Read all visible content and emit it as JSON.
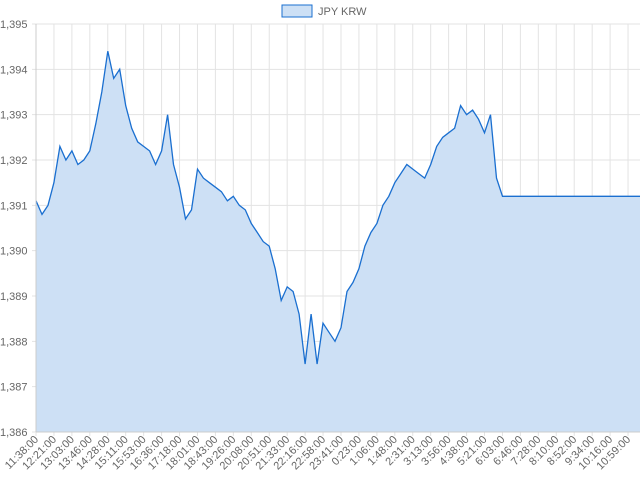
{
  "chart_data": {
    "type": "line",
    "categories": [
      "11:38:00",
      null,
      null,
      "12:21:00",
      null,
      null,
      "13:03:00",
      null,
      null,
      "13:46:00",
      null,
      null,
      "14:28:00",
      null,
      null,
      "15:11:00",
      null,
      null,
      "15:53:00",
      null,
      null,
      "16:36:00",
      null,
      null,
      "17:18:00",
      null,
      null,
      "18:01:00",
      null,
      null,
      "18:43:00",
      null,
      null,
      "19:26:00",
      null,
      null,
      "20:08:00",
      null,
      null,
      "20:51:00",
      null,
      null,
      "21:33:00",
      null,
      null,
      "22:16:00",
      null,
      null,
      "22:58:00",
      null,
      null,
      "23:41:00",
      null,
      null,
      "0:23:00",
      null,
      null,
      "1:06:00",
      null,
      null,
      "1:48:00",
      null,
      null,
      "2:31:00",
      null,
      null,
      "3:13:00",
      null,
      null,
      "3:56:00",
      null,
      null,
      "4:38:00",
      null,
      null,
      "5:21:00",
      null,
      null,
      "6:03:00",
      null,
      null,
      "6:46:00",
      null,
      null,
      "7:28:00",
      null,
      null,
      "8:10:00",
      null,
      null,
      "8:52:00",
      null,
      null,
      "9:34:00",
      null,
      null,
      "10:16:00",
      null,
      null,
      "10:59:00",
      null,
      null
    ],
    "series": [
      {
        "name": "JPY KRW",
        "color": "#1a6fd0",
        "fill": "#cde0f5",
        "values": [
          1391.1,
          1390.8,
          1391.0,
          1391.5,
          1392.3,
          1392.0,
          1392.2,
          1391.9,
          1392.0,
          1392.2,
          1392.8,
          1393.5,
          1394.4,
          1393.8,
          1394.0,
          1393.2,
          1392.7,
          1392.4,
          1392.3,
          1392.2,
          1391.9,
          1392.2,
          1393.0,
          1391.9,
          1391.4,
          1390.7,
          1390.9,
          1391.8,
          1391.6,
          1391.5,
          1391.4,
          1391.3,
          1391.1,
          1391.2,
          1391.0,
          1390.9,
          1390.6,
          1390.4,
          1390.2,
          1390.1,
          1389.6,
          1388.9,
          1389.2,
          1389.1,
          1388.6,
          1387.5,
          1388.6,
          1387.5,
          1388.4,
          1388.2,
          1388.0,
          1388.3,
          1389.1,
          1389.3,
          1389.6,
          1390.1,
          1390.4,
          1390.6,
          1391.0,
          1391.2,
          1391.5,
          1391.7,
          1391.9,
          1391.8,
          1391.7,
          1391.6,
          1391.9,
          1392.3,
          1392.5,
          1392.6,
          1392.7,
          1393.2,
          1393.0,
          1393.1,
          1392.9,
          1392.6,
          1393.0,
          1391.6,
          1391.2,
          1391.2,
          1391.2,
          1391.2,
          1391.2,
          1391.2,
          1391.2,
          1391.2,
          1391.2,
          1391.2,
          1391.2,
          1391.2,
          1391.2,
          1391.2,
          1391.2,
          1391.2,
          1391.2,
          1391.2,
          1391.2,
          1391.2,
          1391.2,
          1391.2,
          1391.2,
          1391.2
        ]
      }
    ],
    "ylim": [
      1386,
      1395
    ],
    "yticks": [
      {
        "value": 1386,
        "label": "1,386"
      },
      {
        "value": 1387,
        "label": "1,387"
      },
      {
        "value": 1388,
        "label": "1,388"
      },
      {
        "value": 1389,
        "label": "1,389"
      },
      {
        "value": 1390,
        "label": "1,390"
      },
      {
        "value": 1391,
        "label": "1,391"
      },
      {
        "value": 1392,
        "label": "1,392"
      },
      {
        "value": 1393,
        "label": "1,393"
      },
      {
        "value": 1394,
        "label": "1,394"
      },
      {
        "value": 1395,
        "label": "1,395"
      }
    ],
    "grid": true,
    "legend": "top"
  }
}
